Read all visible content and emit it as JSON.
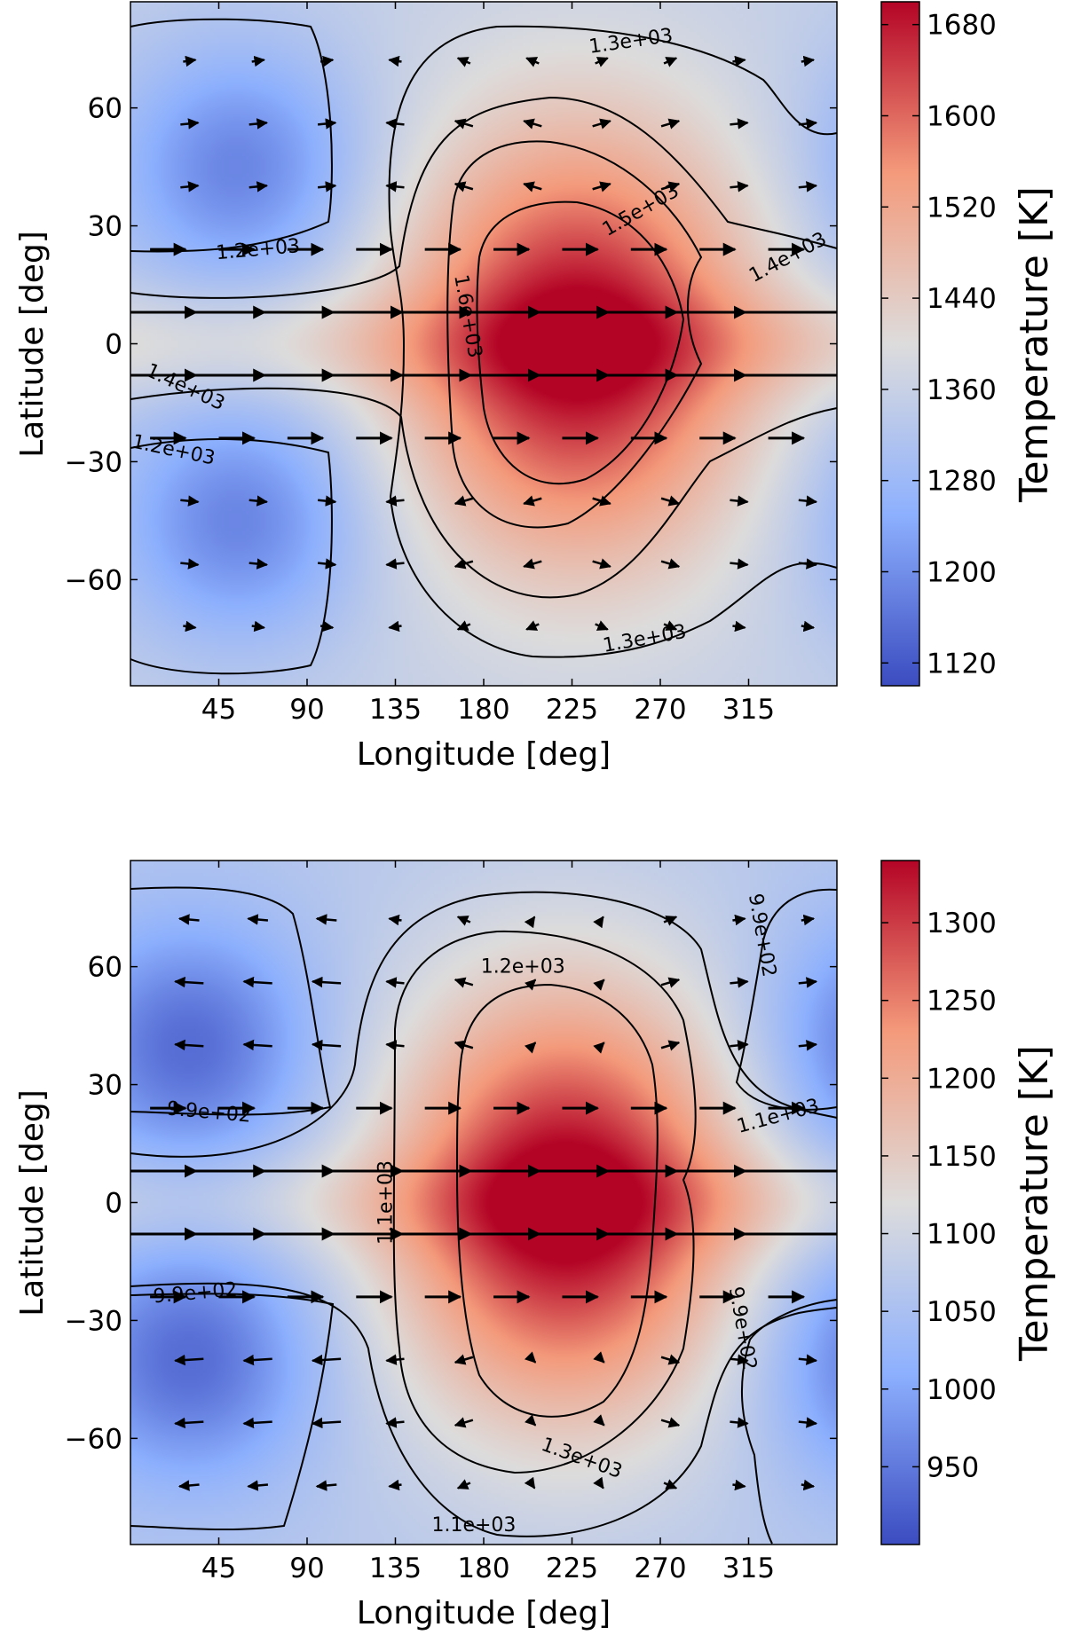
{
  "chart_data": [
    {
      "type": "heatmap",
      "panel": "top",
      "xlabel": "Longitude [deg]",
      "ylabel": "Latitude [deg]",
      "xlim": [
        0,
        360
      ],
      "ylim": [
        -87,
        87
      ],
      "xticks": [
        45,
        90,
        135,
        180,
        225,
        270,
        315
      ],
      "yticks": [
        60,
        30,
        0,
        -30,
        -60
      ],
      "ytick_labels": [
        "60",
        "30",
        "0",
        "−30",
        "−60"
      ],
      "colorbar": {
        "label": "Temperature [K]",
        "range": [
          1100,
          1700
        ],
        "ticks": [
          1680,
          1600,
          1520,
          1440,
          1360,
          1280,
          1200,
          1120
        ],
        "colormap": "coolwarm"
      },
      "hotspot": {
        "lon": 228,
        "lat": 0,
        "max": 1700
      },
      "cold_regions": [
        {
          "lon": 55,
          "lat": 45
        },
        {
          "lon": 55,
          "lat": -45
        }
      ],
      "contour_labels": [
        {
          "text": "1.3e+03",
          "lon": 255,
          "lat": 77,
          "angle": 8
        },
        {
          "text": "1.2e+03",
          "lon": 65,
          "lat": 24,
          "angle": 5
        },
        {
          "text": "1.5e+03",
          "lon": 260,
          "lat": 34,
          "angle": 30
        },
        {
          "text": "1.4e+03",
          "lon": 335,
          "lat": 22,
          "angle": 28
        },
        {
          "text": "1.6e+03",
          "lon": 172,
          "lat": 7,
          "angle": -80
        },
        {
          "text": "1.4e+03",
          "lon": 28,
          "lat": -11,
          "angle": -25
        },
        {
          "text": "1.2e+03",
          "lon": 22,
          "lat": -27,
          "angle": -12
        },
        {
          "text": "1.3e+03",
          "lon": 262,
          "lat": -75,
          "angle": 10
        }
      ],
      "jet_latitudes": [
        8,
        -8
      ],
      "wind_rows": [
        {
          "lat": 24,
          "dashed": true
        },
        {
          "lat": 8,
          "dashed": false
        },
        {
          "lat": -8,
          "dashed": false
        },
        {
          "lat": -24,
          "dashed": true
        }
      ]
    },
    {
      "type": "heatmap",
      "panel": "bottom",
      "xlabel": "Longitude [deg]",
      "ylabel": "Latitude [deg]",
      "xlim": [
        0,
        360
      ],
      "ylim": [
        -87,
        87
      ],
      "xticks": [
        45,
        90,
        135,
        180,
        225,
        270,
        315
      ],
      "yticks": [
        60,
        30,
        0,
        -30,
        -60
      ],
      "ytick_labels": [
        "60",
        "30",
        "0",
        "−30",
        "−60"
      ],
      "colorbar": {
        "label": "Temperature [K]",
        "range": [
          900,
          1340
        ],
        "ticks": [
          1300,
          1250,
          1200,
          1150,
          1100,
          1050,
          1000,
          950
        ],
        "colormap": "coolwarm"
      },
      "hotspot": {
        "lon": 222,
        "lat": 0,
        "max": 1340
      },
      "cold_regions": [
        {
          "lon": 30,
          "lat": 40
        },
        {
          "lon": 30,
          "lat": -40
        }
      ],
      "contour_labels": [
        {
          "text": "1.2e+03",
          "lon": 200,
          "lat": 60,
          "angle": 0
        },
        {
          "text": "9.9e+02",
          "lon": 322,
          "lat": 68,
          "angle": -80
        },
        {
          "text": "9.9e+02",
          "lon": 40,
          "lat": 23,
          "angle": -5
        },
        {
          "text": "1.1e+03",
          "lon": 330,
          "lat": 22,
          "angle": 15
        },
        {
          "text": "1.1e+03",
          "lon": 130,
          "lat": 0,
          "angle": 90
        },
        {
          "text": "9.9e+02",
          "lon": 33,
          "lat": -23,
          "angle": 5
        },
        {
          "text": "1.3e+03",
          "lon": 230,
          "lat": -65,
          "angle": -20
        },
        {
          "text": "9.9e+02",
          "lon": 312,
          "lat": -32,
          "angle": -80
        },
        {
          "text": "1.1e+03",
          "lon": 175,
          "lat": -82,
          "angle": 0
        }
      ],
      "jet_latitudes": [
        8,
        -8
      ],
      "wind_rows": [
        {
          "lat": 24,
          "dashed": true
        },
        {
          "lat": 8,
          "dashed": false
        },
        {
          "lat": -8,
          "dashed": false
        },
        {
          "lat": -24,
          "dashed": true
        }
      ]
    }
  ],
  "colors": {
    "cold": "#3b4cc0",
    "neutral": "#dddddd",
    "hot": "#b40426",
    "contour": "#000000"
  }
}
